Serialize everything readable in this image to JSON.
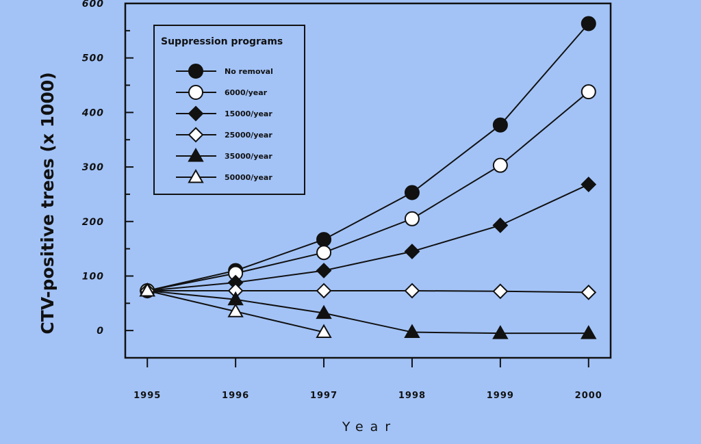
{
  "chart_data": {
    "type": "line",
    "title": "",
    "xlabel": "Year",
    "ylabel": "CTV-positive trees (x 1000)",
    "x": [
      1995,
      1996,
      1997,
      1998,
      1999,
      2000
    ],
    "x_tick_labels": [
      "1995",
      "1996",
      "1997",
      "1998",
      "1999",
      "2000"
    ],
    "y_ticks": [
      0,
      100,
      200,
      300,
      400,
      500,
      600
    ],
    "y_tick_labels": [
      "0",
      "100",
      "200",
      "300",
      "400",
      "500",
      "600"
    ],
    "xlim": [
      1994.75,
      2000.25
    ],
    "ylim": [
      -50,
      600
    ],
    "grid": false,
    "legend": {
      "title": "Suppression programs",
      "position": "top-left"
    },
    "series": [
      {
        "name": "No removal",
        "marker": "circle",
        "filled": true,
        "x": [
          1995,
          1996,
          1997,
          1998,
          1999,
          2000
        ],
        "values": [
          73,
          110,
          167,
          253,
          377,
          563
        ]
      },
      {
        "name": "6000/year",
        "marker": "circle",
        "filled": false,
        "x": [
          1995,
          1996,
          1997,
          1998,
          1999,
          2000
        ],
        "values": [
          73,
          105,
          143,
          205,
          303,
          438
        ]
      },
      {
        "name": "15000/year",
        "marker": "diamond",
        "filled": true,
        "x": [
          1995,
          1996,
          1997,
          1998,
          1999,
          2000
        ],
        "values": [
          73,
          88,
          110,
          145,
          193,
          268
        ]
      },
      {
        "name": "25000/year",
        "marker": "diamond",
        "filled": false,
        "x": [
          1995,
          1996,
          1997,
          1998,
          1999,
          2000
        ],
        "values": [
          73,
          73,
          73,
          73,
          72,
          70
        ]
      },
      {
        "name": "35000/year",
        "marker": "triangle",
        "filled": true,
        "x": [
          1995,
          1996,
          1997,
          1998,
          1999,
          2000
        ],
        "values": [
          73,
          57,
          32,
          -3,
          -5,
          -5
        ]
      },
      {
        "name": "50000/year",
        "marker": "triangle",
        "filled": false,
        "x": [
          1995,
          1996,
          1997
        ],
        "values": [
          73,
          35,
          -3
        ]
      }
    ]
  },
  "colors": {
    "background": "#a3c3f7",
    "ink": "#111111"
  }
}
